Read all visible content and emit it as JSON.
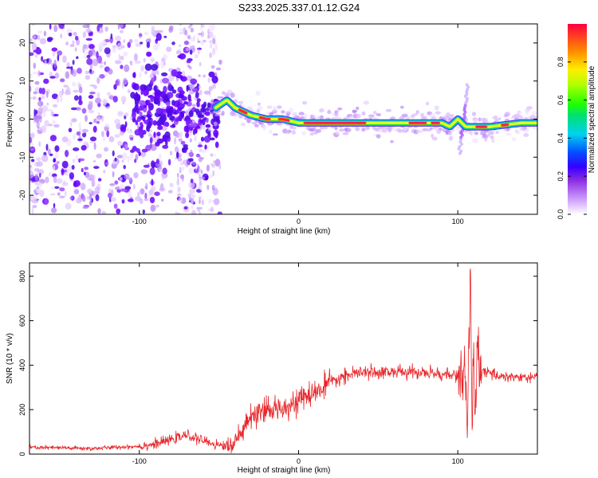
{
  "title": "S233.2025.337.01.12.G24",
  "chart_data": [
    {
      "type": "heatmap",
      "title": "S233.2025.337.01.12.G24",
      "xlabel": "Height of straight line (km)",
      "ylabel": "Frequency (Hz)",
      "xlim": [
        -169,
        150
      ],
      "ylim": [
        -25,
        25
      ],
      "x_ticks": [
        "-100",
        "0",
        "100"
      ],
      "y_ticks": [
        "-20",
        "-10",
        "0",
        "10",
        "20"
      ],
      "colorbar": {
        "label": "Normalized spectral amplitude",
        "range": [
          0,
          1
        ],
        "ticks": [
          "0.0",
          "0.2",
          "0.4",
          "0.6",
          "0.8"
        ]
      },
      "ridge": {
        "x": [
          -52,
          -45,
          -40,
          -30,
          -20,
          -10,
          0,
          10,
          30,
          50,
          70,
          80,
          90,
          95,
          100,
          105,
          110,
          120,
          140,
          150
        ],
        "y": [
          3,
          5,
          3,
          1,
          0,
          0,
          -1,
          -1,
          -1,
          -1,
          -1,
          -1,
          -1,
          -2,
          0,
          -2,
          -2,
          -2,
          -1,
          -1
        ]
      }
    },
    {
      "type": "line",
      "xlabel": "Height of straight line (km)",
      "ylabel": "SNR (10 * v/v)",
      "xlim": [
        -169,
        150
      ],
      "ylim": [
        0,
        860
      ],
      "x_ticks": [
        "-100",
        "0",
        "100"
      ],
      "y_ticks": [
        "0",
        "200",
        "400",
        "600",
        "800"
      ],
      "series": [
        {
          "name": "SNR",
          "color": "#e8262a",
          "x": [
            -169,
            -150,
            -130,
            -110,
            -100,
            -90,
            -80,
            -70,
            -60,
            -50,
            -42,
            -36,
            -30,
            -20,
            -10,
            0,
            10,
            20,
            30,
            40,
            50,
            60,
            70,
            80,
            90,
            100,
            104,
            106,
            107,
            108,
            109,
            110,
            111,
            112,
            115,
            120,
            130,
            140,
            150
          ],
          "y": [
            30,
            28,
            25,
            32,
            35,
            45,
            65,
            85,
            60,
            40,
            35,
            90,
            165,
            190,
            215,
            240,
            275,
            320,
            355,
            365,
            370,
            370,
            368,
            365,
            360,
            350,
            380,
            120,
            470,
            840,
            60,
            520,
            80,
            420,
            380,
            360,
            350,
            345,
            345
          ]
        }
      ]
    }
  ]
}
